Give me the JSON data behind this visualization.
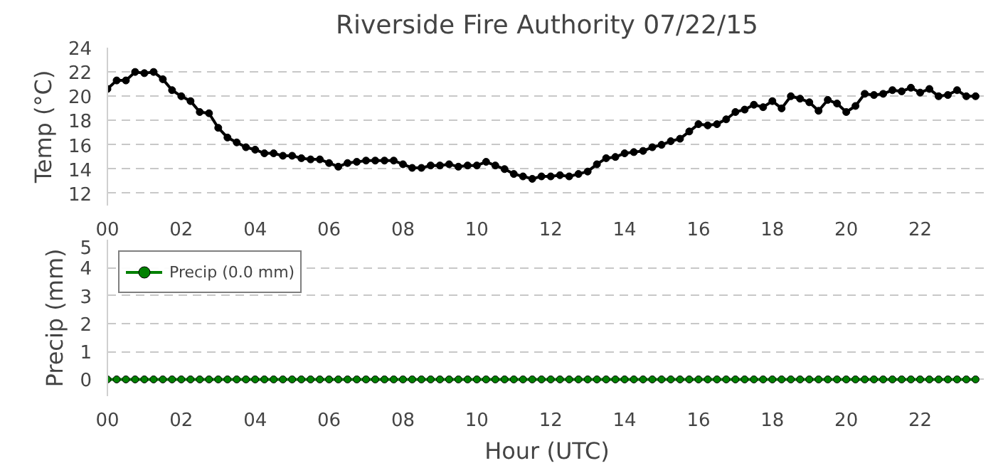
{
  "chart_data": [
    {
      "type": "line",
      "title": "Riverside Fire Authority 07/22/15",
      "ylabel": "Temp (°C)",
      "x": [
        0,
        0.25,
        0.5,
        0.75,
        1,
        1.25,
        1.5,
        1.75,
        2,
        2.25,
        2.5,
        2.75,
        3,
        3.25,
        3.5,
        3.75,
        4,
        4.25,
        4.5,
        4.75,
        5,
        5.25,
        5.5,
        5.75,
        6,
        6.25,
        6.5,
        6.75,
        7,
        7.25,
        7.5,
        7.75,
        8,
        8.25,
        8.5,
        8.75,
        9,
        9.25,
        9.5,
        9.75,
        10,
        10.25,
        10.5,
        10.75,
        11,
        11.25,
        11.5,
        11.75,
        12,
        12.25,
        12.5,
        12.75,
        13,
        13.25,
        13.5,
        13.75,
        14,
        14.25,
        14.5,
        14.75,
        15,
        15.25,
        15.5,
        15.75,
        16,
        16.25,
        16.5,
        16.75,
        17,
        17.25,
        17.5,
        17.75,
        18,
        18.25,
        18.5,
        18.75,
        19,
        19.25,
        19.5,
        19.75,
        20,
        20.25,
        20.5,
        20.75,
        21,
        21.25,
        21.5,
        21.75,
        22,
        22.25,
        22.5,
        22.75,
        23,
        23.25,
        23.5
      ],
      "series": [
        {
          "color": "#000000",
          "values": [
            20.6,
            21.3,
            21.3,
            22.0,
            21.9,
            22.0,
            21.4,
            20.5,
            20.0,
            19.6,
            18.7,
            18.6,
            17.4,
            16.6,
            16.2,
            15.8,
            15.6,
            15.3,
            15.3,
            15.1,
            15.1,
            14.9,
            14.8,
            14.8,
            14.5,
            14.2,
            14.5,
            14.6,
            14.7,
            14.7,
            14.7,
            14.7,
            14.4,
            14.1,
            14.1,
            14.3,
            14.3,
            14.4,
            14.2,
            14.3,
            14.3,
            14.6,
            14.3,
            14.0,
            13.6,
            13.4,
            13.2,
            13.4,
            13.4,
            13.5,
            13.4,
            13.6,
            13.8,
            14.4,
            14.9,
            15.0,
            15.3,
            15.4,
            15.5,
            15.8,
            16.0,
            16.3,
            16.5,
            17.1,
            17.7,
            17.6,
            17.7,
            18.1,
            18.7,
            18.9,
            19.3,
            19.1,
            19.6,
            19.0,
            20.0,
            19.8,
            19.5,
            18.8,
            19.7,
            19.4,
            18.7,
            19.2,
            20.2,
            20.1,
            20.2,
            20.5,
            20.4,
            20.7,
            20.3,
            20.6,
            20.0,
            20.1,
            20.5,
            20.0,
            20.0
          ]
        }
      ],
      "xlim": [
        0,
        23.8
      ],
      "ylim": [
        11,
        24
      ],
      "xticks": [
        {
          "value": 0,
          "label": "00"
        },
        {
          "value": 2,
          "label": "02"
        },
        {
          "value": 4,
          "label": "04"
        },
        {
          "value": 6,
          "label": "06"
        },
        {
          "value": 8,
          "label": "08"
        },
        {
          "value": 10,
          "label": "10"
        },
        {
          "value": 12,
          "label": "12"
        },
        {
          "value": 14,
          "label": "14"
        },
        {
          "value": 16,
          "label": "16"
        },
        {
          "value": 18,
          "label": "18"
        },
        {
          "value": 20,
          "label": "20"
        },
        {
          "value": 22,
          "label": "22"
        }
      ],
      "yticks": [
        12,
        14,
        16,
        18,
        20,
        22,
        24
      ],
      "grid": "y",
      "marker": "circle",
      "line_style": "solid",
      "legend": false
    },
    {
      "type": "line",
      "xlabel": "Hour (UTC)",
      "ylabel": "Precip (mm)",
      "x": [
        0,
        0.25,
        0.5,
        0.75,
        1,
        1.25,
        1.5,
        1.75,
        2,
        2.25,
        2.5,
        2.75,
        3,
        3.25,
        3.5,
        3.75,
        4,
        4.25,
        4.5,
        4.75,
        5,
        5.25,
        5.5,
        5.75,
        6,
        6.25,
        6.5,
        6.75,
        7,
        7.25,
        7.5,
        7.75,
        8,
        8.25,
        8.5,
        8.75,
        9,
        9.25,
        9.5,
        9.75,
        10,
        10.25,
        10.5,
        10.75,
        11,
        11.25,
        11.5,
        11.75,
        12,
        12.25,
        12.5,
        12.75,
        13,
        13.25,
        13.5,
        13.75,
        14,
        14.25,
        14.5,
        14.75,
        15,
        15.25,
        15.5,
        15.75,
        16,
        16.25,
        16.5,
        16.75,
        17,
        17.25,
        17.5,
        17.75,
        18,
        18.25,
        18.5,
        18.75,
        19,
        19.25,
        19.5,
        19.75,
        20,
        20.25,
        20.5,
        20.75,
        21,
        21.25,
        21.5,
        21.75,
        22,
        22.25,
        22.5,
        22.75,
        23,
        23.25,
        23.5
      ],
      "series": [
        {
          "name": "Precip (0.0 mm)",
          "color": "#008000",
          "values": [
            0,
            0,
            0,
            0,
            0,
            0,
            0,
            0,
            0,
            0,
            0,
            0,
            0,
            0,
            0,
            0,
            0,
            0,
            0,
            0,
            0,
            0,
            0,
            0,
            0,
            0,
            0,
            0,
            0,
            0,
            0,
            0,
            0,
            0,
            0,
            0,
            0,
            0,
            0,
            0,
            0,
            0,
            0,
            0,
            0,
            0,
            0,
            0,
            0,
            0,
            0,
            0,
            0,
            0,
            0,
            0,
            0,
            0,
            0,
            0,
            0,
            0,
            0,
            0,
            0,
            0,
            0,
            0,
            0,
            0,
            0,
            0,
            0,
            0,
            0,
            0,
            0,
            0,
            0,
            0,
            0,
            0,
            0,
            0,
            0,
            0,
            0,
            0,
            0,
            0,
            0,
            0,
            0,
            0,
            0
          ]
        }
      ],
      "xlim": [
        0,
        23.8
      ],
      "ylim": [
        -0.6,
        5
      ],
      "xticks": [
        {
          "value": 0,
          "label": "00"
        },
        {
          "value": 2,
          "label": "02"
        },
        {
          "value": 4,
          "label": "04"
        },
        {
          "value": 6,
          "label": "06"
        },
        {
          "value": 8,
          "label": "08"
        },
        {
          "value": 10,
          "label": "10"
        },
        {
          "value": 12,
          "label": "12"
        },
        {
          "value": 14,
          "label": "14"
        },
        {
          "value": 16,
          "label": "16"
        },
        {
          "value": 18,
          "label": "18"
        },
        {
          "value": 20,
          "label": "20"
        },
        {
          "value": 22,
          "label": "22"
        }
      ],
      "yticks": [
        0,
        1,
        2,
        3,
        4,
        5
      ],
      "grid": "y",
      "marker": "circle",
      "line_style": "solid",
      "legend": "top left"
    }
  ]
}
